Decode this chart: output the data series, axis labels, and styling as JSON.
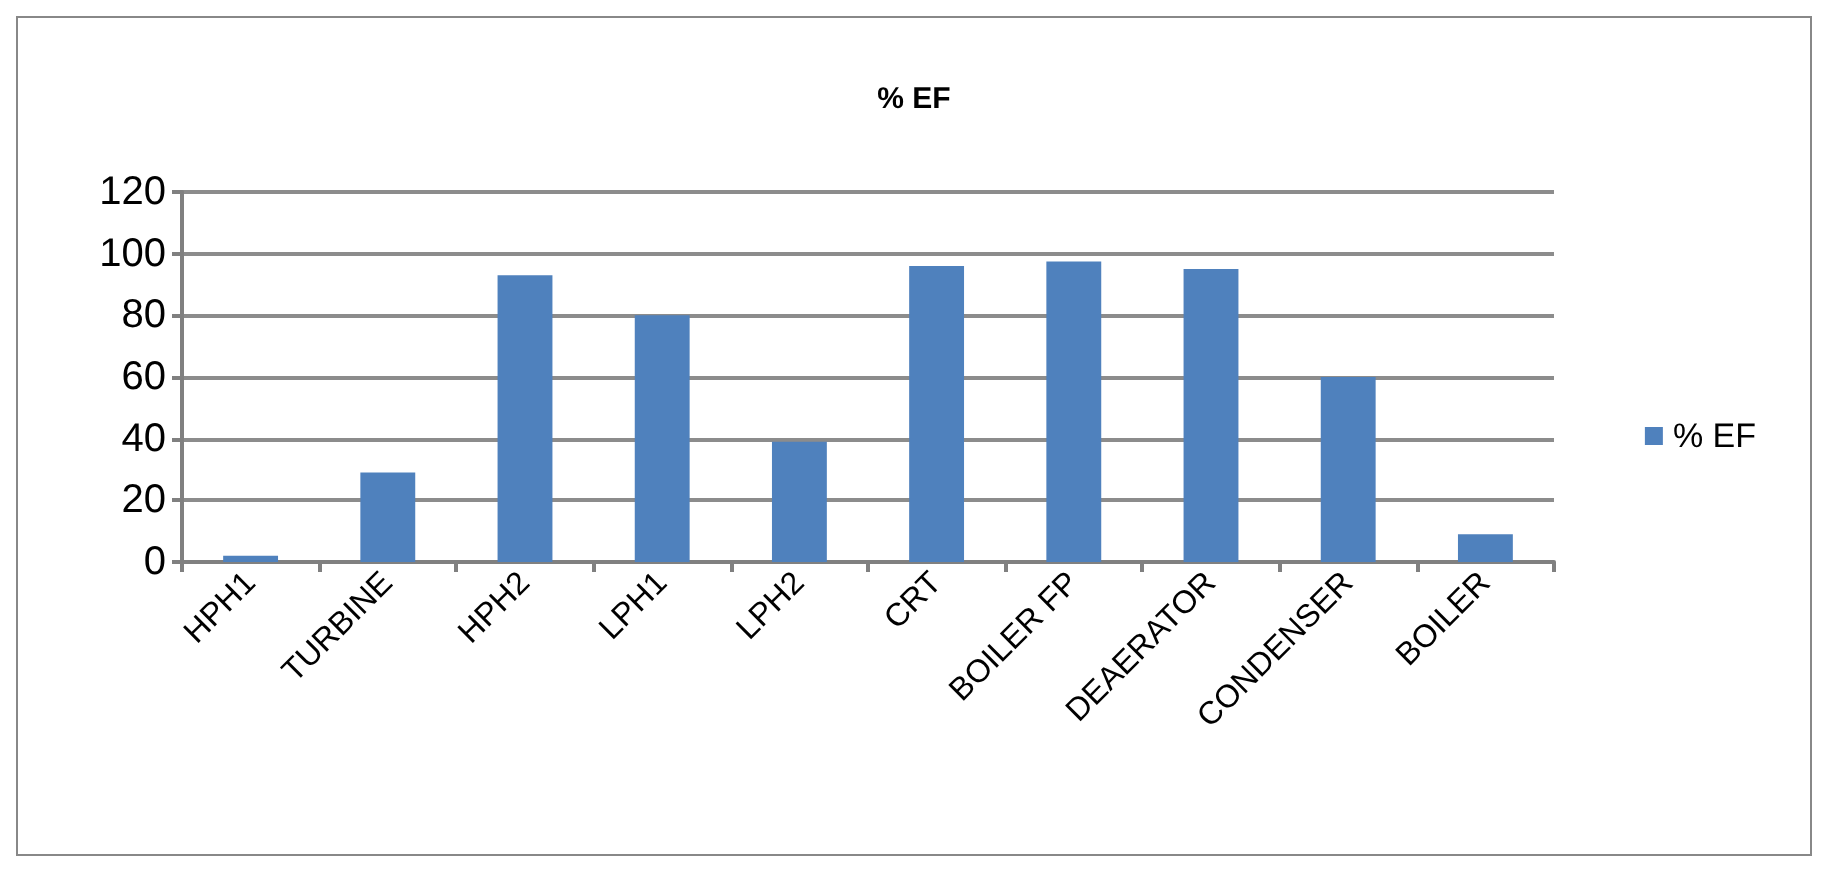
{
  "chart_data": {
    "type": "bar",
    "title": "% EF",
    "categories": [
      "HPH1",
      "TURBINE",
      "HPH2",
      "LPH1",
      "LPH2",
      "CRT",
      "BOILER FP",
      "DEAERATOR",
      "CONDENSER",
      "BOILER"
    ],
    "series": [
      {
        "name": "% EF",
        "color": "#4f81bd",
        "values": [
          2,
          29,
          93,
          80,
          39,
          96,
          97.5,
          95,
          60,
          9
        ]
      }
    ],
    "ylim": [
      0,
      120
    ],
    "yticks": [
      0,
      20,
      40,
      60,
      80,
      100,
      120
    ],
    "grid": "y",
    "legend": "right"
  }
}
